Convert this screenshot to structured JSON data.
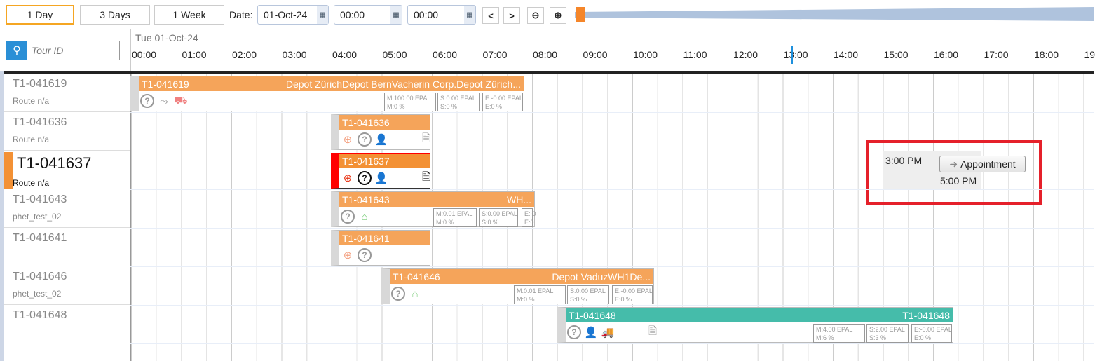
{
  "toolbar": {
    "day1": "1 Day",
    "days3": "3 Days",
    "week1": "1 Week",
    "date_label": "Date:",
    "date": "01-Oct-24",
    "time_from": "00:00",
    "time_to": "00:00",
    "prev": "<",
    "next": ">",
    "zoom_out_icon": "zoom-out-icon",
    "zoom_in_icon": "zoom-in-icon"
  },
  "search": {
    "placeholder": "Tour ID"
  },
  "timeline": {
    "date": "Tue 01-Oct-24",
    "hours": [
      "00:00",
      "01:00",
      "02:00",
      "03:00",
      "04:00",
      "05:00",
      "06:00",
      "07:00",
      "08:00",
      "09:00",
      "10:00",
      "11:00",
      "12:00",
      "13:00",
      "14:00",
      "15:00",
      "16:00",
      "17:00",
      "18:00",
      "19"
    ]
  },
  "rows": [
    {
      "id": "T1-041619",
      "sub": "Route n/a"
    },
    {
      "id": "T1-041636",
      "sub": "Route n/a"
    },
    {
      "id": "T1-041637",
      "sub": "Route n/a",
      "selected": true
    },
    {
      "id": "T1-041643",
      "sub": "phet_test_02"
    },
    {
      "id": "T1-041641",
      "sub": ""
    },
    {
      "id": "T1-041646",
      "sub": "phet_test_02"
    },
    {
      "id": "T1-041648",
      "sub": ""
    }
  ],
  "tours": [
    {
      "id": "T1-041619",
      "dest": "Depot ZürichDepot BernVacherin Corp.Depot Zürich...",
      "m1": "M:100.00 EPAL",
      "m2": "M:0 %",
      "s1": "S:0.00 EPAL",
      "s2": "S:0 %",
      "e1": "E:-0.00 EPAL",
      "e2": "E:0 %"
    },
    {
      "id": "T1-041636"
    },
    {
      "id": "T1-041637"
    },
    {
      "id": "T1-041643",
      "dest": "WH...",
      "m1": "M:0.01 EPAL",
      "m2": "M:0 %",
      "s1": "S:0.00 EPAL",
      "s2": "S:0 %",
      "e1": "E:-0",
      "e2": "E:0"
    },
    {
      "id": "T1-041641"
    },
    {
      "id": "T1-041646",
      "dest": "Depot VaduzWH1De...",
      "m1": "M:0.01 EPAL",
      "m2": "M:0 %",
      "s1": "S:0.00 EPAL",
      "s2": "S:0 %",
      "e1": "E:-0.00 EPAL",
      "e2": "E:0 %"
    },
    {
      "id": "T1-041648",
      "dest": "T1-041648",
      "m1": "M:4.00 EPAL",
      "m2": "M:6 %",
      "s1": "S:2.00 EPAL",
      "s2": "S:3 %",
      "e1": "E:-0.00 EPAL",
      "e2": "E:0 %"
    }
  ],
  "appointment": {
    "start": "3:00 PM",
    "end": "5:00 PM",
    "button": "Appointment"
  },
  "colors": {
    "tour": "#f5a45a",
    "selected_tour": "#f39135",
    "teal": "#45bcaa",
    "highlight": "#e5202a",
    "accent": "#f5a623"
  }
}
